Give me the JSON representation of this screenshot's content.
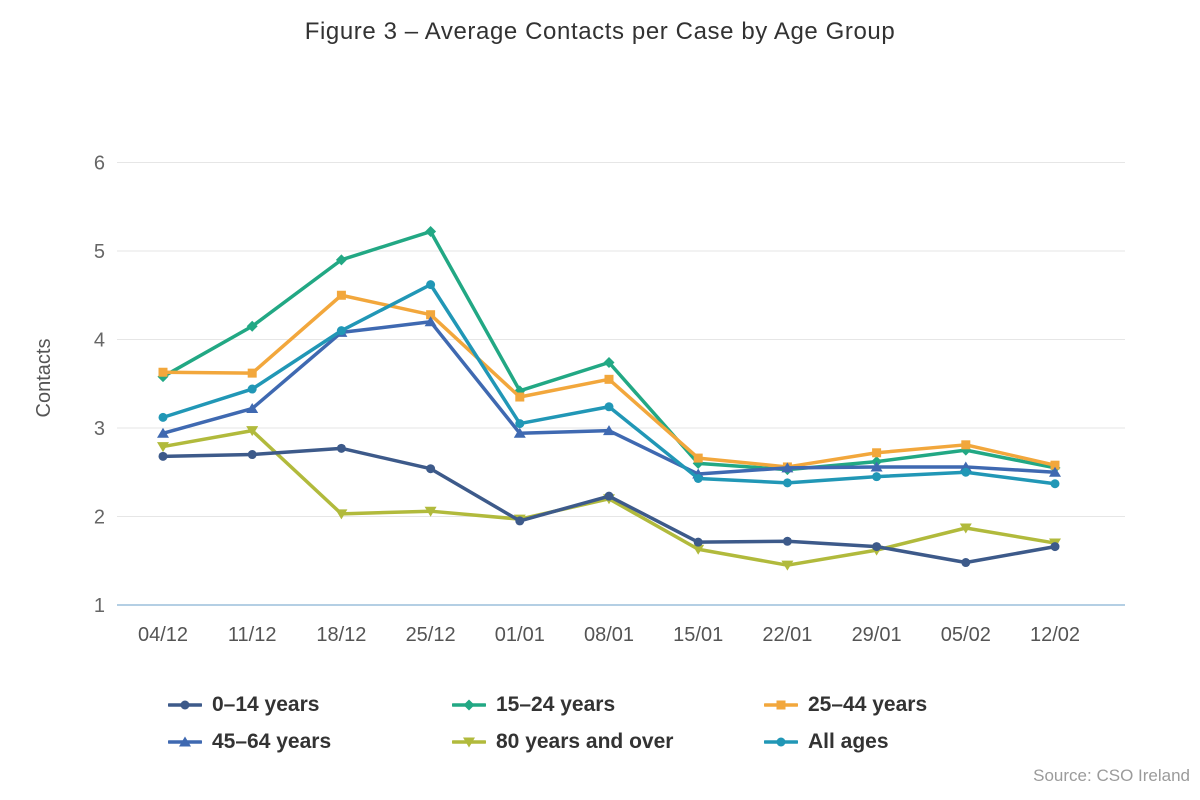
{
  "title": "Figure 3 – Average Contacts per Case by Age Group",
  "source": "Source: CSO Ireland",
  "colors": {
    "gridline": "#e6e6e6",
    "axis_line": "#b4cfe4",
    "tick_text": "#666666",
    "x_tick_text": "#545454",
    "title_text": "#323232",
    "legend_text": "#333333",
    "source_text": "#9b9b9b"
  },
  "chart_data": {
    "type": "line",
    "title": "Figure 3 – Average Contacts per Case by Age Group",
    "xlabel": "",
    "ylabel": "Contacts",
    "ylim": [
      1,
      6
    ],
    "yticks": [
      1,
      2,
      3,
      4,
      5,
      6
    ],
    "grid": true,
    "legend_position": "bottom",
    "categories": [
      "04/12",
      "11/12",
      "18/12",
      "25/12",
      "01/01",
      "08/01",
      "15/01",
      "22/01",
      "29/01",
      "05/02",
      "12/02"
    ],
    "series": [
      {
        "id": "0-14-years",
        "name": "0–14 years",
        "color": "#3d5a8a",
        "marker": "circle",
        "values": [
          2.68,
          2.7,
          2.77,
          2.54,
          1.95,
          2.23,
          1.71,
          1.72,
          1.66,
          1.48,
          1.66
        ]
      },
      {
        "id": "15-24-years",
        "name": "15–24 years",
        "color": "#22a884",
        "marker": "diamond",
        "values": [
          3.58,
          4.15,
          4.9,
          5.22,
          3.42,
          3.74,
          2.6,
          2.53,
          2.62,
          2.75,
          2.55
        ]
      },
      {
        "id": "25-44-years",
        "name": "25–44 years",
        "color": "#f2a73c",
        "marker": "square",
        "values": [
          3.63,
          3.62,
          4.5,
          4.28,
          3.35,
          3.55,
          2.66,
          2.56,
          2.72,
          2.81,
          2.58
        ]
      },
      {
        "id": "45-64-years",
        "name": "45–64 years",
        "color": "#3f69b1",
        "marker": "triangle",
        "values": [
          2.94,
          3.22,
          4.08,
          4.2,
          2.94,
          2.97,
          2.48,
          2.55,
          2.56,
          2.56,
          2.5
        ]
      },
      {
        "id": "80-years-and-over",
        "name": "80 years and over",
        "color": "#b1ba3c",
        "marker": "triangle-down",
        "values": [
          2.79,
          2.97,
          2.03,
          2.06,
          1.97,
          2.2,
          1.63,
          1.45,
          1.62,
          1.87,
          1.7
        ]
      },
      {
        "id": "all-ages",
        "name": "All ages",
        "color": "#2197b6",
        "marker": "circle",
        "values": [
          3.12,
          3.44,
          4.1,
          4.62,
          3.05,
          3.24,
          2.43,
          2.38,
          2.45,
          2.5,
          2.37
        ]
      }
    ]
  }
}
